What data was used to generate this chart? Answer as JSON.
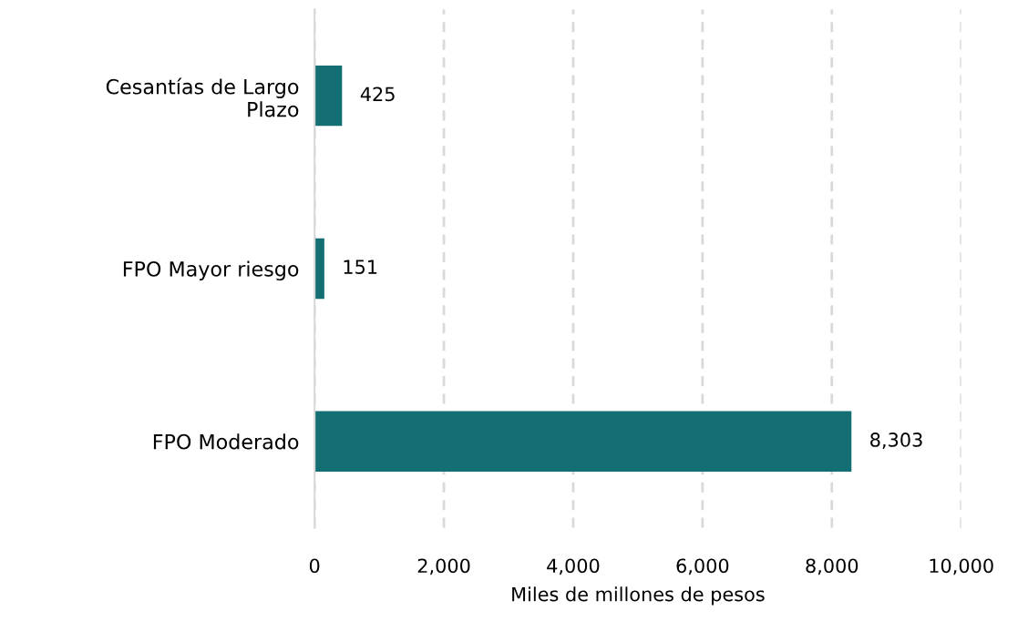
{
  "chart_data": {
    "type": "bar",
    "orientation": "horizontal",
    "xlabel": "Miles de millones de pesos",
    "categories": [
      "Cesantías de Largo\nPlazo",
      "FPO Mayor riesgo",
      "FPO Moderado"
    ],
    "values": [
      425,
      151,
      8303
    ],
    "value_labels": [
      "425",
      "151",
      "8,303"
    ],
    "color": "#146f75",
    "xlim": [
      0,
      10000
    ],
    "xticks": [
      {
        "value": 0,
        "label": "0"
      },
      {
        "value": 2000,
        "label": "2,000"
      },
      {
        "value": 4000,
        "label": "4,000"
      },
      {
        "value": 6000,
        "label": "6,000"
      },
      {
        "value": 8000,
        "label": "8,000"
      },
      {
        "value": 10000,
        "label": "10,000"
      }
    ],
    "grid": "x",
    "legend": false
  }
}
